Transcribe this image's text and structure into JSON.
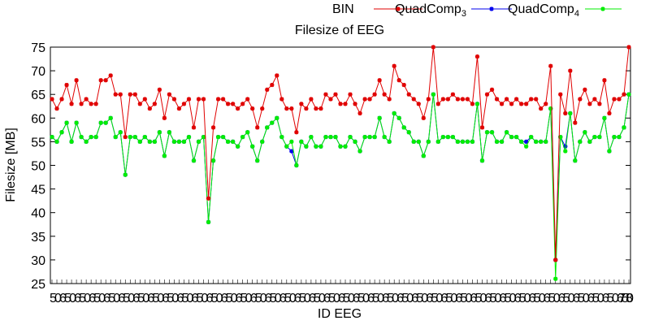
{
  "chart_data": {
    "type": "line",
    "title": "Filesize of EEG",
    "xlabel": "ID EEG",
    "ylabel": "Filesize [MB]",
    "ylim": [
      25,
      75
    ],
    "yticks": [
      25,
      30,
      35,
      40,
      45,
      50,
      55,
      60,
      65,
      70,
      75
    ],
    "grid": false,
    "legend_position": "top-right",
    "x_tick_labels_rendered": "overlapping, illegible",
    "x_ticks_last_visible": "78",
    "legend": [
      {
        "name": "BIN",
        "label_base": "BIN",
        "label_sub": "",
        "color": "#e00000",
        "marker": "none"
      },
      {
        "name": "QuadComp3",
        "label_base": "QuadComp",
        "label_sub": "3",
        "color": "#e00000",
        "marker": "star"
      },
      {
        "name": "QuadComp4",
        "label_base": "QuadComp",
        "label_sub": "4",
        "color": "#0000ee",
        "marker": "star"
      },
      {
        "name": "",
        "label_base": "",
        "label_sub": "",
        "color": "#00ee00",
        "marker": "star"
      }
    ],
    "series": [
      {
        "name": "QuadComp3",
        "color": "#e00000",
        "values": [
          64,
          62,
          64,
          67,
          63,
          68,
          63,
          64,
          63,
          63,
          68,
          68,
          69,
          65,
          65,
          56,
          65,
          65,
          63,
          64,
          62,
          63,
          66,
          60,
          65,
          64,
          62,
          63,
          64,
          58,
          64,
          64,
          43,
          58,
          64,
          64,
          63,
          63,
          62,
          63,
          64,
          62,
          58,
          62,
          66,
          67,
          69,
          64,
          62,
          62,
          57,
          63,
          62,
          64,
          62,
          62,
          65,
          64,
          65,
          63,
          63,
          65,
          63,
          61,
          64,
          64,
          65,
          68,
          65,
          64,
          71,
          68,
          67,
          65,
          64,
          63,
          60,
          64,
          75,
          63,
          64,
          64,
          65,
          64,
          64,
          64,
          63,
          73,
          58,
          65,
          66,
          64,
          63,
          64,
          63,
          64,
          63,
          63,
          64,
          64,
          62,
          63,
          71,
          30,
          65,
          61,
          70,
          59,
          64,
          66,
          63,
          64,
          63,
          68,
          61,
          64,
          64,
          65,
          75
        ]
      },
      {
        "name": "QuadComp4",
        "color": "#0000ee",
        "values": [
          56,
          55,
          57,
          59,
          55,
          59,
          56,
          55,
          56,
          56,
          59,
          59,
          60,
          56,
          57,
          48,
          56,
          56,
          55,
          56,
          55,
          55,
          57,
          52,
          57,
          55,
          55,
          55,
          56,
          51,
          55,
          56,
          38,
          51,
          56,
          56,
          55,
          55,
          54,
          56,
          57,
          54,
          51,
          55,
          58,
          59,
          60,
          56,
          54,
          53,
          50,
          55,
          54,
          56,
          54,
          54,
          56,
          56,
          56,
          54,
          54,
          56,
          55,
          53,
          56,
          56,
          56,
          60,
          56,
          55,
          61,
          60,
          58,
          57,
          55,
          55,
          52,
          55,
          65,
          55,
          56,
          56,
          56,
          55,
          55,
          55,
          55,
          63,
          51,
          57,
          57,
          55,
          55,
          57,
          56,
          56,
          55,
          55,
          56,
          55,
          55,
          55,
          62,
          30,
          56,
          54,
          61,
          51,
          55,
          57,
          55,
          56,
          56,
          60,
          53,
          56,
          56,
          58,
          65
        ]
      },
      {
        "name": "",
        "color": "#00ee00",
        "values": [
          56,
          55,
          57,
          59,
          55,
          59,
          56,
          55,
          56,
          56,
          59,
          59,
          60,
          56,
          57,
          48,
          56,
          56,
          55,
          56,
          55,
          55,
          57,
          52,
          57,
          55,
          55,
          55,
          56,
          51,
          55,
          56,
          38,
          51,
          56,
          56,
          55,
          55,
          54,
          56,
          57,
          54,
          51,
          55,
          58,
          59,
          60,
          56,
          54,
          55,
          50,
          55,
          54,
          56,
          54,
          54,
          56,
          56,
          56,
          54,
          54,
          56,
          55,
          53,
          56,
          56,
          56,
          60,
          56,
          55,
          61,
          60,
          58,
          57,
          55,
          55,
          52,
          55,
          65,
          55,
          56,
          56,
          56,
          55,
          55,
          55,
          55,
          63,
          51,
          57,
          57,
          55,
          55,
          57,
          56,
          56,
          55,
          54,
          56,
          55,
          55,
          55,
          62,
          26,
          56,
          53,
          61,
          51,
          55,
          57,
          55,
          56,
          56,
          60,
          53,
          56,
          56,
          58,
          65
        ]
      }
    ]
  }
}
